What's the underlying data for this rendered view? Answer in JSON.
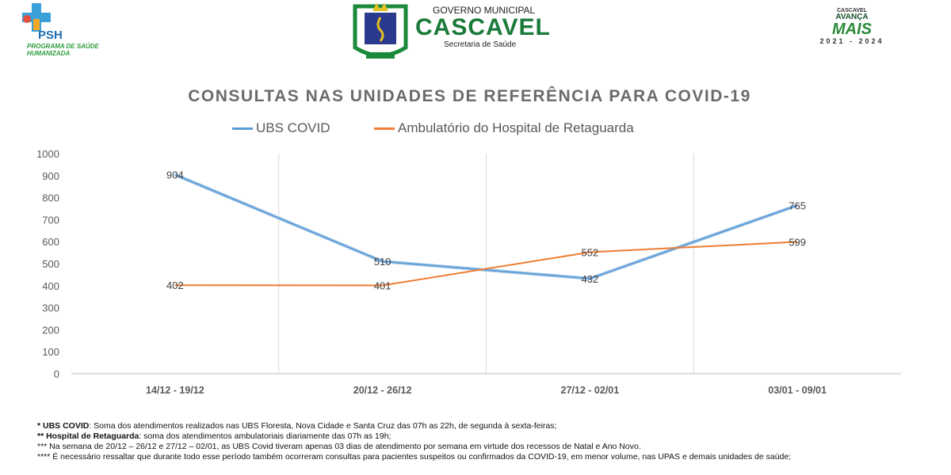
{
  "header": {
    "psh_logo": {
      "abbr": "PSH",
      "text": "PROGRAMA DE SAÚDE HUMANIZADA"
    },
    "cascavel_logo": {
      "government": "GOVERNO MUNICIPAL",
      "city": "CASCAVEL",
      "department": "Secretaria de Saúde",
      "seal_text": "CASCAVEL"
    },
    "avanca_logo": {
      "top": "CASCAVEL",
      "line1": "AVANÇA",
      "line2": "MAIS",
      "years": "2021 - 2024"
    }
  },
  "chart_data": {
    "type": "line",
    "title": "CONSULTAS NAS UNIDADES DE REFERÊNCIA PARA COVID-19",
    "categories": [
      "14/12 - 19/12",
      "20/12 - 26/12",
      "27/12 - 02/01",
      "03/01 - 09/01"
    ],
    "series": [
      {
        "name": "UBS COVID",
        "values": [
          904,
          510,
          432,
          765
        ],
        "color": "#5b9bd5"
      },
      {
        "name": "Ambulatório do Hospital de Retaguarda",
        "values": [
          402,
          401,
          552,
          599
        ],
        "color": "#ed7d31"
      }
    ],
    "ylim": [
      0,
      1000
    ],
    "yticks": [
      0,
      100,
      200,
      300,
      400,
      500,
      600,
      700,
      800,
      900,
      1000
    ],
    "legend": "top",
    "grid": "vertical between categories"
  },
  "footnotes": [
    {
      "bold": "* UBS COVID",
      "text": ": Soma dos atendimentos realizados nas UBS Floresta, Nova Cidade e Santa Cruz das 07h as 22h, de segunda à sexta-feiras;"
    },
    {
      "bold": "** Hospital de Retaguarda",
      "text": ": soma dos atendimentos ambulatoriais diariamente das 07h as 19h;"
    },
    {
      "bold": "",
      "text": "*** Na semana de 20/12 – 26/12 e 27/12 – 02/01, as UBS Covid tiveram apenas 03 dias de atendimento por semana em virtude dos recessos de Natal e Ano Novo."
    },
    {
      "bold": "",
      "text": "**** É necessário ressaltar que durante todo esse período também ocorreram consultas para pacientes suspeitos ou confirmados da COVID-19, em menor volume, nas UPAS e demais unidades de saúde;"
    }
  ]
}
